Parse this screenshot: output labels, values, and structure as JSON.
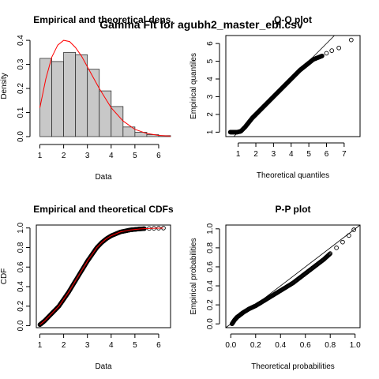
{
  "page_title": "Gamma Fit for agubh2_master_ebl.csv",
  "chart_data": [
    {
      "type": "bar",
      "title": "Empirical and theoretical dens.",
      "xlabel": "Data",
      "ylabel": "Density",
      "xlim": [
        0.85,
        6.5
      ],
      "ylim": [
        0,
        0.42
      ],
      "xticks": [
        "1",
        "2",
        "3",
        "4",
        "5",
        "6"
      ],
      "yticks": [
        "0.0",
        "0.1",
        "0.2",
        "0.3",
        "0.4"
      ],
      "bin_edges": [
        1,
        1.5,
        2,
        2.5,
        3,
        3.5,
        4,
        4.5,
        5,
        5.5,
        6,
        6.5
      ],
      "values": [
        0.325,
        0.312,
        0.35,
        0.34,
        0.28,
        0.19,
        0.125,
        0.04,
        0.018,
        0.008,
        0.004
      ],
      "fit_curve": {
        "x": [
          1,
          1.25,
          1.5,
          1.75,
          2,
          2.25,
          2.5,
          2.75,
          3,
          3.25,
          3.5,
          3.75,
          4,
          4.5,
          5,
          5.5,
          6,
          6.5
        ],
        "y": [
          0.12,
          0.24,
          0.33,
          0.38,
          0.4,
          0.395,
          0.37,
          0.335,
          0.29,
          0.245,
          0.2,
          0.16,
          0.12,
          0.065,
          0.03,
          0.013,
          0.005,
          0.002
        ],
        "color": "#ff0000"
      }
    },
    {
      "type": "scatter",
      "title": "Q-Q plot",
      "xlabel": "Theoretical quantiles",
      "ylabel": "Empirical quantiles",
      "xlim": [
        0.3,
        7.9
      ],
      "ylim": [
        0.75,
        6.45
      ],
      "xticks": [
        "1",
        "2",
        "3",
        "4",
        "5",
        "6",
        "7"
      ],
      "yticks": [
        "1",
        "2",
        "3",
        "4",
        "5",
        "6"
      ],
      "x": [
        0.55,
        0.75,
        0.95,
        1.15,
        1.4,
        1.6,
        1.8,
        2.0,
        2.25,
        2.5,
        2.75,
        3.0,
        3.25,
        3.5,
        3.75,
        4.0,
        4.25,
        4.5,
        4.75,
        5.0,
        5.25,
        5.5,
        5.75,
        6.0,
        6.3,
        6.7,
        7.4
      ],
      "y": [
        1.0,
        1.0,
        1.0,
        1.05,
        1.3,
        1.55,
        1.8,
        2.0,
        2.25,
        2.5,
        2.75,
        3.0,
        3.25,
        3.5,
        3.75,
        4.0,
        4.25,
        4.5,
        4.7,
        4.9,
        5.1,
        5.2,
        5.3,
        5.45,
        5.6,
        5.75,
        6.2
      ],
      "reference_line": {
        "slope": 1,
        "intercept": 0,
        "color": "#000000"
      }
    },
    {
      "type": "scatter",
      "title": "Empirical and theoretical CDFs",
      "xlabel": "Data",
      "ylabel": "CDF",
      "xlim": [
        0.85,
        6.5
      ],
      "ylim": [
        -0.02,
        1.03
      ],
      "xticks": [
        "1",
        "2",
        "3",
        "4",
        "5",
        "6"
      ],
      "yticks": [
        "0.0",
        "0.2",
        "0.4",
        "0.6",
        "0.8",
        "1.0"
      ],
      "x": [
        1.0,
        1.1,
        1.2,
        1.4,
        1.6,
        1.8,
        2.0,
        2.2,
        2.4,
        2.6,
        2.8,
        3.0,
        3.2,
        3.4,
        3.6,
        3.8,
        4.0,
        4.2,
        4.4,
        4.6,
        4.8,
        5.0,
        5.2,
        5.4,
        5.6,
        5.8,
        6.0,
        6.2
      ],
      "y": [
        0.01,
        0.03,
        0.05,
        0.1,
        0.15,
        0.2,
        0.27,
        0.34,
        0.42,
        0.5,
        0.58,
        0.66,
        0.73,
        0.8,
        0.85,
        0.89,
        0.92,
        0.94,
        0.96,
        0.97,
        0.98,
        0.985,
        0.99,
        0.993,
        0.995,
        0.997,
        0.998,
        0.999
      ],
      "fit_curve": {
        "color": "#ff0000"
      }
    },
    {
      "type": "scatter",
      "title": "P-P plot",
      "xlabel": "Theoretical probabilities",
      "ylabel": "Empirical probabilities",
      "xlim": [
        -0.04,
        1.04
      ],
      "ylim": [
        -0.04,
        1.04
      ],
      "xticks": [
        "0.0",
        "0.2",
        "0.4",
        "0.6",
        "0.8",
        "1.0"
      ],
      "yticks": [
        "0.0",
        "0.2",
        "0.4",
        "0.6",
        "0.8",
        "1.0"
      ],
      "x": [
        0.01,
        0.03,
        0.05,
        0.08,
        0.1,
        0.15,
        0.2,
        0.25,
        0.3,
        0.35,
        0.4,
        0.45,
        0.5,
        0.55,
        0.6,
        0.65,
        0.7,
        0.75,
        0.8,
        0.85,
        0.9,
        0.95,
        0.99
      ],
      "y": [
        0.0,
        0.04,
        0.07,
        0.1,
        0.12,
        0.16,
        0.19,
        0.23,
        0.27,
        0.31,
        0.35,
        0.39,
        0.43,
        0.48,
        0.53,
        0.58,
        0.63,
        0.68,
        0.74,
        0.8,
        0.86,
        0.93,
        0.99
      ],
      "reference_line": {
        "slope": 1,
        "intercept": 0,
        "color": "#000000"
      }
    }
  ]
}
